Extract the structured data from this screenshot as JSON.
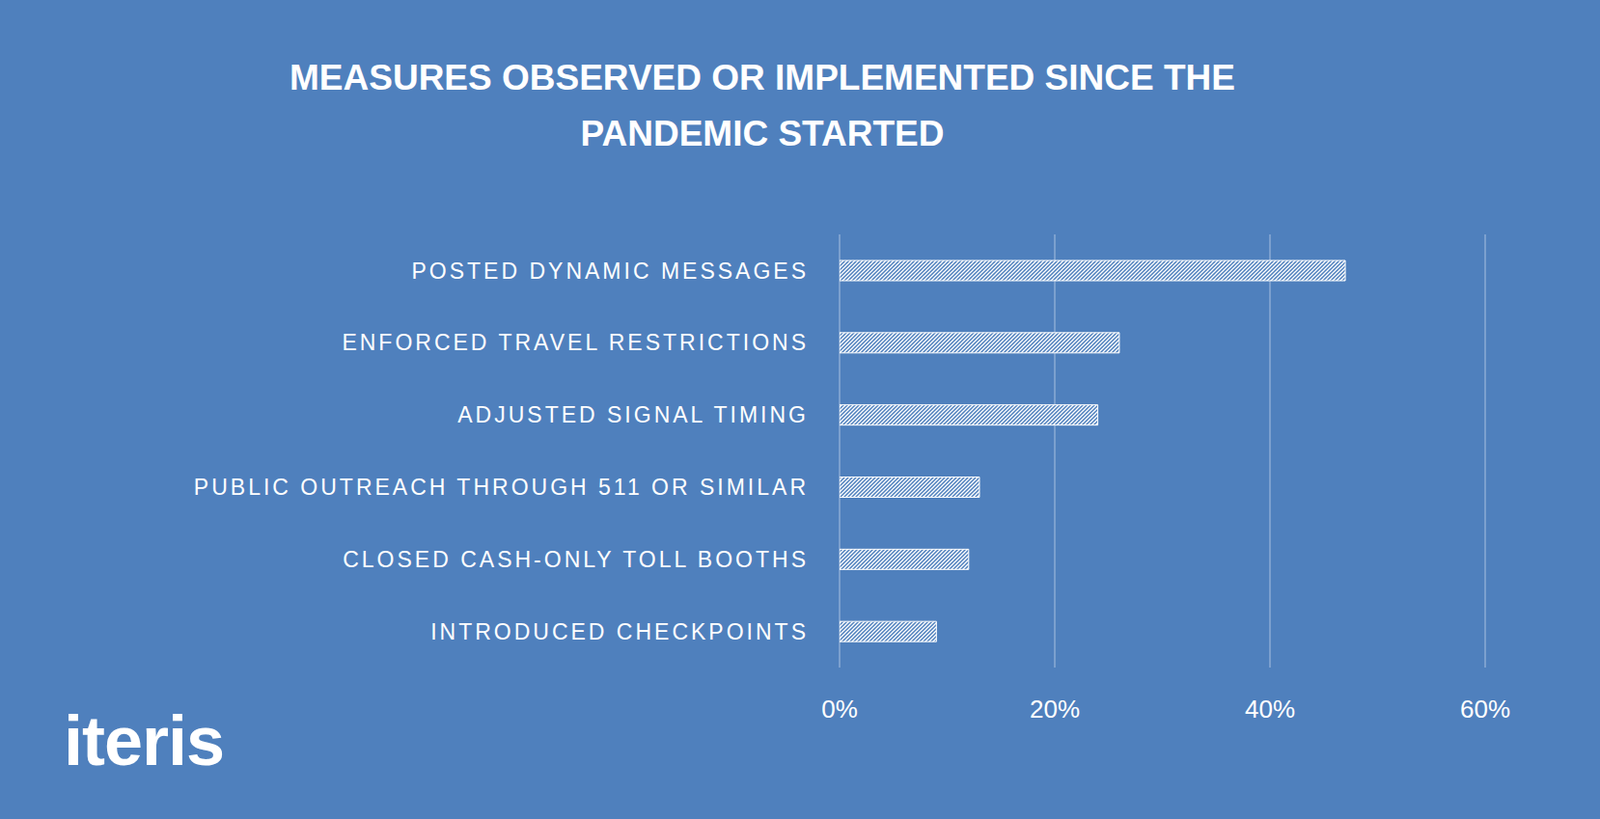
{
  "chart_data": {
    "type": "bar",
    "title": "MEASURES OBSERVED OR IMPLEMENTED SINCE THE PANDEMIC STARTED",
    "annotations": [
      "iteris"
    ],
    "orientation": "horizontal",
    "categories": [
      "POSTED DYNAMIC MESSAGES",
      "ENFORCED TRAVEL RESTRICTIONS",
      "ADJUSTED SIGNAL TIMING",
      "PUBLIC OUTREACH THROUGH 511 OR SIMILAR",
      "CLOSED CASH-ONLY TOLL BOOTHS",
      "INTRODUCED CHECKPOINTS"
    ],
    "values": [
      47,
      26,
      24,
      13,
      12,
      9
    ],
    "color": "#ffffff",
    "xlim": [
      0,
      60
    ],
    "xticks": [
      {
        "value": 0,
        "label": "0%"
      },
      {
        "value": 20,
        "label": "20%"
      },
      {
        "value": 40,
        "label": "40%"
      },
      {
        "value": 60,
        "label": "60%"
      }
    ],
    "grid": true
  }
}
